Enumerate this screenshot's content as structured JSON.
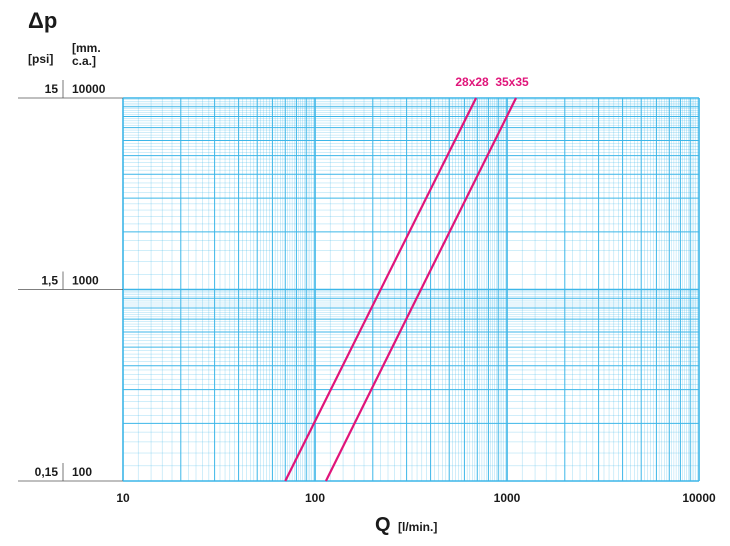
{
  "chart_data": {
    "type": "line",
    "title": "Δp",
    "xlabel": "Q",
    "xlabel_unit": "[l/min.]",
    "ylabel": [
      "[mm.",
      "c.a.]"
    ],
    "y2label": "[psi]",
    "xscale": "log",
    "yscale": "log",
    "grid": true,
    "xlim": [
      10,
      10000
    ],
    "xticks": [
      10,
      100,
      1000,
      10000
    ],
    "ylim": [
      100,
      10000
    ],
    "yticks": [
      100,
      1000,
      10000
    ],
    "y2lim": [
      0.15,
      15
    ],
    "y2ticks": [
      {
        "value": 0.15,
        "label": "0,15"
      },
      {
        "value": 1.5,
        "label": "1,5"
      },
      15
    ],
    "grid_color": "#3cb6e8",
    "series": [
      {
        "name": "28x28",
        "color": "#e0157a",
        "x": [
          70,
          690
        ],
        "values": [
          100,
          10000
        ]
      },
      {
        "name": "35x35",
        "color": "#e0157a",
        "x": [
          114,
          1114
        ],
        "values": [
          100,
          10000
        ]
      }
    ]
  }
}
